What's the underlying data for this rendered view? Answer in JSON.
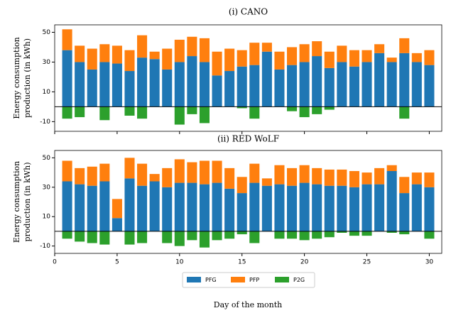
{
  "chart_data": {
    "type": "bar",
    "stacked": true,
    "xlabel": "Day of the month",
    "ylabel": [
      "Energy consumption",
      "production (in kWh)"
    ],
    "x": [
      1,
      2,
      3,
      4,
      5,
      6,
      7,
      8,
      9,
      10,
      11,
      12,
      13,
      14,
      15,
      16,
      17,
      18,
      19,
      20,
      21,
      22,
      23,
      24,
      25,
      26,
      27,
      28,
      29,
      30
    ],
    "xlim": [
      0,
      31
    ],
    "xticks": [
      0,
      5,
      10,
      15,
      20,
      25,
      30
    ],
    "yticks": [
      -10,
      10,
      30,
      50
    ],
    "legend": [
      {
        "name": "PFG",
        "color": "#1f77b4"
      },
      {
        "name": "PFP",
        "color": "#ff7f0e"
      },
      {
        "name": "P2G",
        "color": "#2ca02c"
      }
    ],
    "panels": [
      {
        "title": "(i) CANO",
        "ylim": [
          -16.5,
          55
        ],
        "series": [
          {
            "values": [
              38,
              30,
              25,
              30,
              29,
              24,
              33,
              32,
              25,
              30,
              34,
              30,
              21,
              24,
              27,
              28,
              37,
              25,
              28,
              30,
              34,
              26,
              30,
              27,
              30,
              36,
              30,
              36,
              30,
              28
            ]
          },
          {
            "values": [
              14,
              11,
              14,
              12,
              12,
              14,
              15,
              5,
              14,
              15,
              13,
              16,
              16,
              15,
              11,
              15,
              6,
              12,
              12,
              12,
              10,
              11,
              11,
              11,
              8,
              6,
              3,
              10,
              6,
              10
            ]
          },
          {
            "values": [
              -8,
              -7,
              0,
              -9,
              0,
              -6,
              -8,
              0,
              0,
              -12,
              -5,
              -11,
              0,
              0,
              -1,
              -8,
              0,
              0,
              -3,
              -7,
              -5,
              -2,
              0,
              0,
              0,
              0,
              0,
              -8,
              0,
              0
            ]
          }
        ]
      },
      {
        "title": "(ii) RED WoLF",
        "ylim": [
          -15,
          55
        ],
        "series": [
          {
            "values": [
              34,
              32,
              31,
              34,
              9,
              36,
              31,
              34,
              30,
              33,
              33,
              32,
              33,
              29,
              26,
              33,
              31,
              32,
              31,
              33,
              32,
              31,
              31,
              30,
              32,
              32,
              41,
              26,
              32,
              30
            ]
          },
          {
            "values": [
              14,
              11,
              13,
              12,
              13,
              14,
              15,
              5,
              13,
              16,
              14,
              16,
              15,
              14,
              11,
              13,
              5,
              13,
              12,
              12,
              11,
              11,
              11,
              11,
              8,
              11,
              4,
              11,
              8,
              10
            ]
          },
          {
            "values": [
              -5,
              -7,
              -8,
              -9,
              0,
              -9,
              -8,
              0,
              -8,
              -10,
              -6,
              -11,
              -6,
              -5,
              -2,
              -8,
              0,
              -5,
              -5,
              -6,
              -5,
              -4,
              -1,
              -3,
              -3,
              0,
              -1,
              -2,
              0,
              -5
            ]
          }
        ]
      }
    ]
  }
}
